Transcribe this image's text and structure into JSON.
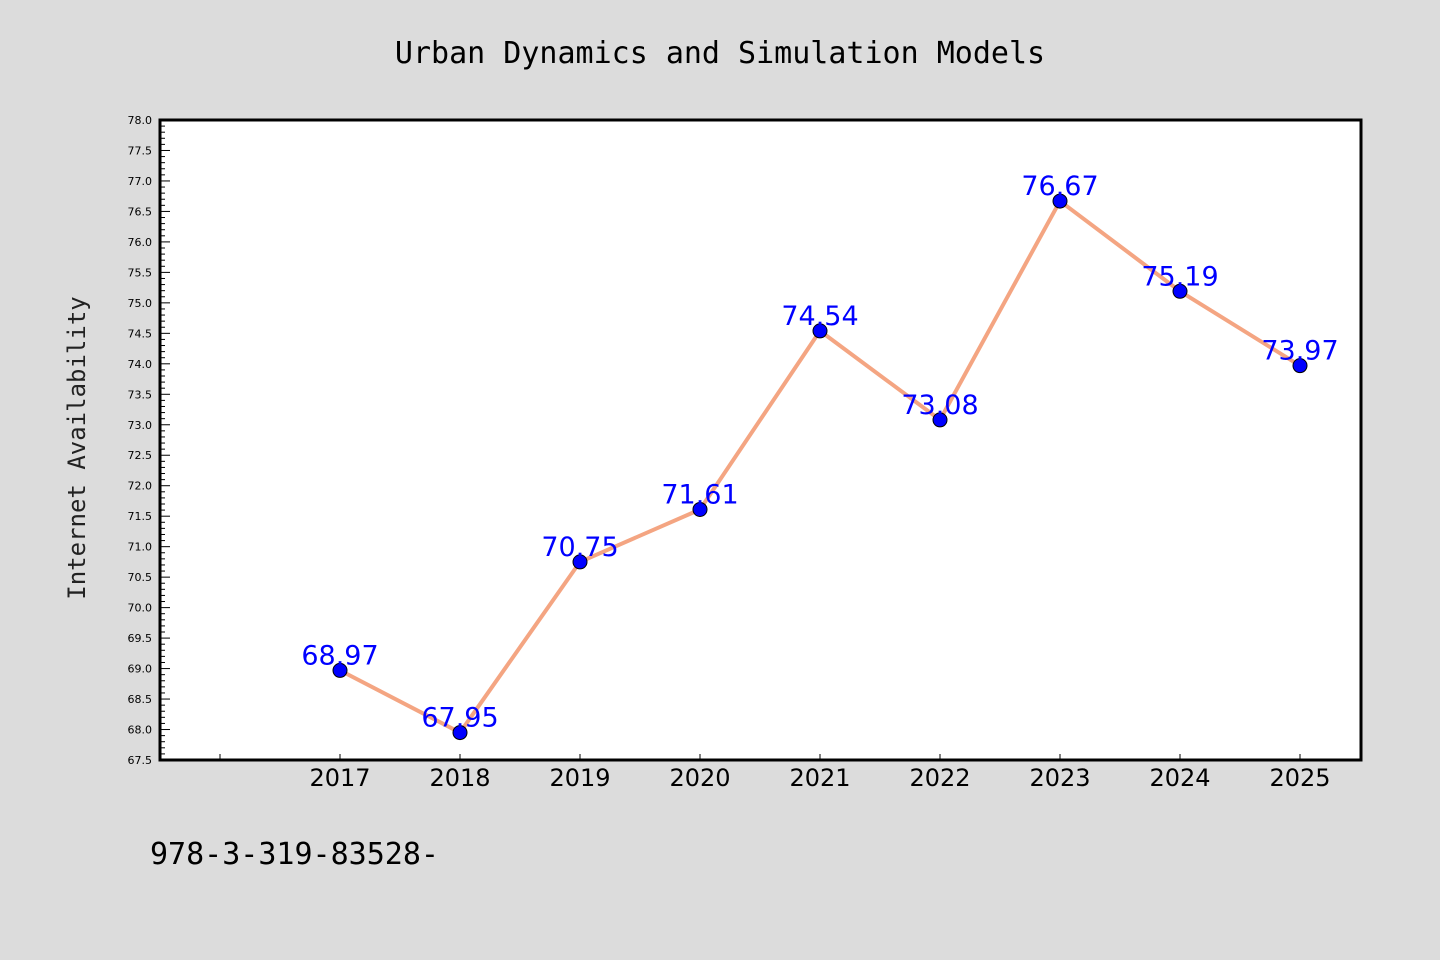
{
  "chart_data": {
    "type": "line",
    "title": "Urban Dynamics and Simulation Models",
    "ylabel": "Internet Availability",
    "xlabel": "",
    "categories": [
      "2017",
      "2018",
      "2019",
      "2020",
      "2021",
      "2022",
      "2023",
      "2024",
      "2025"
    ],
    "values": [
      68.97,
      67.95,
      70.75,
      71.61,
      74.54,
      73.08,
      76.67,
      75.19,
      73.97
    ],
    "data_labels": [
      "68.97",
      "67.95",
      "70.75",
      "71.61",
      "74.54",
      "73.08",
      "76.67",
      "75.19",
      "73.97"
    ],
    "ylim": [
      67.5,
      78.0
    ],
    "y_ticks": [
      "67.5",
      "68.0",
      "68.5",
      "69.0",
      "69.5",
      "70.0",
      "70.5",
      "71.0",
      "71.5",
      "72.0",
      "72.5",
      "73.0",
      "73.5",
      "74.0",
      "74.5",
      "75.0",
      "75.5",
      "76.0",
      "76.5",
      "77.0",
      "77.5",
      "78.0"
    ],
    "grid": false,
    "legend": "none",
    "colors": {
      "line": "#f4a582",
      "marker": "#0000ff",
      "data_label": "#0000ff",
      "plot_background": "#ffffff",
      "page_background": "#dcdcdc"
    }
  },
  "footer": {
    "isbn_text": "978-3-319-83528-"
  }
}
